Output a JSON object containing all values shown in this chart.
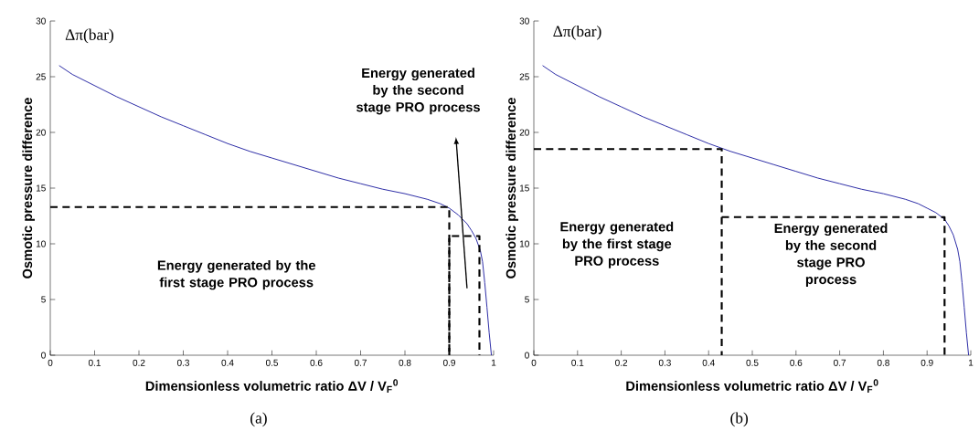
{
  "chart_data": [
    {
      "type": "line",
      "xlabel": "Dimensionless volumetric ratio ΔV / V$_{F}$$^{0}$",
      "ylabel": "Osmotic pressure difference",
      "xlim": [
        0,
        1
      ],
      "ylim": [
        0,
        30
      ],
      "xticks": [
        0,
        0.1,
        0.2,
        0.3,
        0.4,
        0.5,
        0.6,
        0.7,
        0.8,
        0.9,
        1
      ],
      "yticks": [
        0,
        5,
        10,
        15,
        20,
        25,
        30
      ],
      "annotations": [
        "Δπ(bar)",
        "Energy generated by the first stage PRO process",
        "Energy generated by the second stage PRO process",
        "(a)"
      ],
      "series": [
        {
          "line_style": "solid",
          "color": "#1f1fa0",
          "x": [
            0.02,
            0.05,
            0.1,
            0.15,
            0.2,
            0.25,
            0.3,
            0.35,
            0.4,
            0.45,
            0.5,
            0.55,
            0.6,
            0.65,
            0.7,
            0.75,
            0.8,
            0.85,
            0.88,
            0.9,
            0.92,
            0.94,
            0.95,
            0.96,
            0.97,
            0.975,
            0.98,
            0.985,
            0.99,
            0.995
          ],
          "values": [
            26,
            25.2,
            24.2,
            23.2,
            22.3,
            21.4,
            20.6,
            19.8,
            19,
            18.3,
            17.7,
            17.1,
            16.5,
            15.9,
            15.4,
            14.9,
            14.5,
            14,
            13.6,
            13.2,
            12.6,
            11.8,
            11.2,
            10.5,
            9.4,
            8.4,
            6.5,
            4.3,
            2,
            0
          ]
        },
        {
          "line_style": "dashed",
          "color": "#000000",
          "x": [
            0,
            0.9,
            0.9
          ],
          "values": [
            13.3,
            13.3,
            0
          ]
        },
        {
          "line_style": "dashed",
          "color": "#000000",
          "x": [
            0.9,
            0.9,
            0.968,
            0.968
          ],
          "values": [
            0,
            10.7,
            10.7,
            0
          ]
        }
      ]
    },
    {
      "type": "line",
      "xlabel": "Dimensionless volumetric ratio ΔV / V$_{F}$$^{0}$",
      "ylabel": "Osmotic pressure difference",
      "xlim": [
        0,
        1
      ],
      "ylim": [
        0,
        30
      ],
      "xticks": [
        0,
        0.1,
        0.2,
        0.3,
        0.4,
        0.5,
        0.6,
        0.7,
        0.8,
        0.9,
        1
      ],
      "yticks": [
        0,
        5,
        10,
        15,
        20,
        25,
        30
      ],
      "annotations": [
        "Δπ(bar)",
        "Energy generated by the first stage PRO process",
        "Energy generated by the second stage PRO process",
        "(b)"
      ],
      "series": [
        {
          "line_style": "solid",
          "color": "#1f1fa0",
          "x": [
            0.02,
            0.05,
            0.1,
            0.15,
            0.2,
            0.25,
            0.3,
            0.35,
            0.4,
            0.45,
            0.5,
            0.55,
            0.6,
            0.65,
            0.7,
            0.75,
            0.8,
            0.85,
            0.88,
            0.9,
            0.92,
            0.94,
            0.95,
            0.96,
            0.97,
            0.975,
            0.98,
            0.985,
            0.99,
            0.995
          ],
          "values": [
            26,
            25.2,
            24.2,
            23.2,
            22.3,
            21.4,
            20.6,
            19.8,
            19,
            18.3,
            17.7,
            17.1,
            16.5,
            15.9,
            15.4,
            14.9,
            14.5,
            14,
            13.6,
            13.2,
            12.8,
            12.2,
            11.6,
            10.8,
            9.5,
            8.4,
            6.5,
            4.3,
            2,
            0
          ]
        },
        {
          "line_style": "dashed",
          "color": "#000000",
          "x": [
            0,
            0.43,
            0.43
          ],
          "values": [
            18.5,
            18.5,
            0
          ]
        },
        {
          "line_style": "dashed",
          "color": "#000000",
          "x": [
            0.43,
            0.94,
            0.94
          ],
          "values": [
            12.4,
            12.4,
            0
          ]
        }
      ]
    }
  ]
}
